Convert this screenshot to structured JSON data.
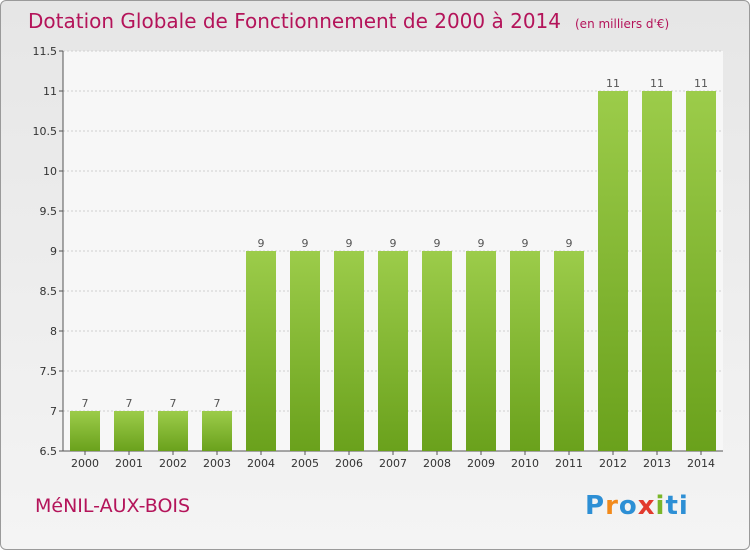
{
  "header": {
    "title": "Dotation Globale de Fonctionnement de 2000 à 2014",
    "subtitle": "(en milliers d'€)"
  },
  "footer": {
    "town": "MéNIL-AUX-BOIS",
    "brand_letters": [
      "P",
      "r",
      "o",
      "x",
      "i",
      "ti"
    ]
  },
  "colors": {
    "title": "#b4145a",
    "bar_light": "#9ccc4a",
    "bar_dark": "#6aa11c",
    "grid": "#cfcfcf"
  },
  "chart_data": {
    "type": "bar",
    "title": "Dotation Globale de Fonctionnement de 2000 à 2014",
    "subtitle": "(en milliers d'€)",
    "xlabel": "",
    "ylabel": "",
    "categories": [
      "2000",
      "2001",
      "2002",
      "2003",
      "2004",
      "2005",
      "2006",
      "2007",
      "2008",
      "2009",
      "2010",
      "2011",
      "2012",
      "2013",
      "2014"
    ],
    "values": [
      7,
      7,
      7,
      7,
      9,
      9,
      9,
      9,
      9,
      9,
      9,
      9,
      11,
      11,
      11
    ],
    "ylim": [
      6.5,
      11.5
    ],
    "yticks": [
      "6.5",
      "7",
      "7.5",
      "8",
      "8.5",
      "9",
      "9.5",
      "10",
      "10.5",
      "11",
      "11.5"
    ],
    "grid": true
  }
}
